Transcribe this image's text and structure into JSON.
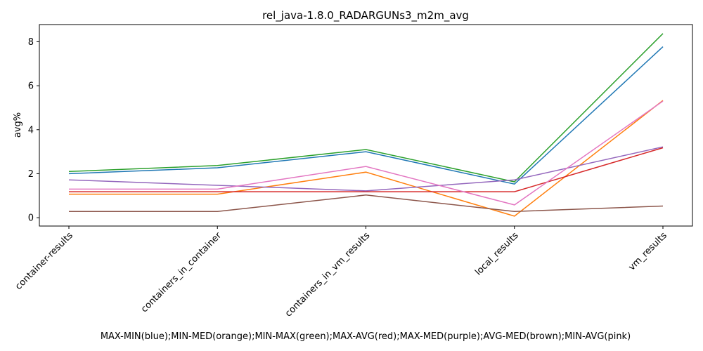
{
  "chart_data": {
    "type": "line",
    "title": "rel_java-1.8.0_RADARGUNs3_m2m_avg",
    "xlabel": "MAX-MIN(blue);MIN-MED(orange);MIN-MAX(green);MAX-AVG(red);MAX-MED(purple);AVG-MED(brown);MIN-AVG(pink)",
    "ylabel": "avg%",
    "categories": [
      "container-results",
      "containers_in_container",
      "containers_in_vm_results",
      "local_results",
      "vm_results"
    ],
    "yticks": [
      0,
      2,
      4,
      6,
      8
    ],
    "ylim": [
      -0.38,
      8.78
    ],
    "grid": false,
    "series": [
      {
        "color": "#1f77b4",
        "values": [
          2.0,
          2.27,
          3.0,
          1.53,
          7.77
        ]
      },
      {
        "color": "#ff7f0e",
        "values": [
          1.07,
          1.07,
          2.07,
          0.07,
          5.33
        ]
      },
      {
        "color": "#2ca02c",
        "values": [
          2.1,
          2.37,
          3.1,
          1.63,
          8.37
        ]
      },
      {
        "color": "#d62728",
        "values": [
          1.18,
          1.18,
          1.18,
          1.18,
          3.18
        ]
      },
      {
        "color": "#9467bd",
        "values": [
          1.72,
          1.47,
          1.22,
          1.72,
          3.22
        ]
      },
      {
        "color": "#8c564b",
        "values": [
          0.28,
          0.28,
          1.03,
          0.28,
          0.53
        ]
      },
      {
        "color": "#e377c2",
        "values": [
          1.3,
          1.3,
          2.33,
          0.58,
          5.3
        ]
      }
    ]
  }
}
